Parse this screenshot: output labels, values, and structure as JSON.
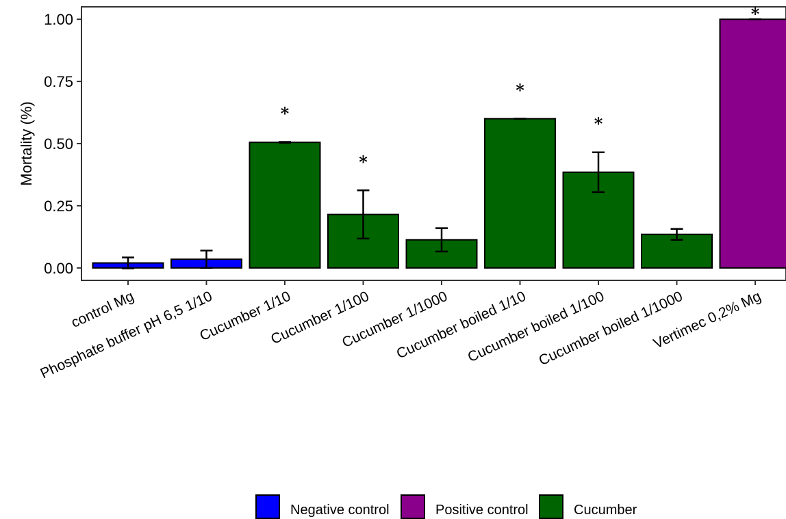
{
  "chart_data": {
    "type": "bar",
    "title": "",
    "xlabel": "",
    "ylabel": "Mortality (%)",
    "ylim": [
      -0.05,
      1.05
    ],
    "yticks": [
      "0.00",
      "0.25",
      "0.50",
      "0.75",
      "1.00"
    ],
    "grid": false,
    "legend_position": "bottom",
    "categories": [
      "control Mg",
      "Phosphate buffer pH 6,5 1/10",
      "Cucumber 1/10",
      "Cucumber 1/100",
      "Cucumber 1/1000",
      "Cucumber boiled 1/10",
      "Cucumber boiled 1/100",
      "Cucumber boiled 1/1000",
      "Vertimec 0,2% Mg"
    ],
    "values": [
      0.02,
      0.035,
      0.505,
      0.215,
      0.113,
      0.6,
      0.385,
      0.135,
      1.0
    ],
    "errors": [
      0.022,
      0.035,
      0.002,
      0.097,
      0.047,
      0.0,
      0.08,
      0.022,
      0.0
    ],
    "groups": [
      "Negative control",
      "Negative control",
      "Cucumber",
      "Cucumber",
      "Cucumber",
      "Cucumber",
      "Cucumber",
      "Cucumber",
      "Positive control"
    ],
    "significance": [
      "",
      "",
      "*",
      "*",
      "",
      "*",
      "*",
      "",
      "*"
    ],
    "legend": [
      {
        "name": "Negative control",
        "color": "#0000ff"
      },
      {
        "name": "Positive control",
        "color": "#8b008b"
      },
      {
        "name": "Cucumber",
        "color": "#006400"
      }
    ]
  }
}
